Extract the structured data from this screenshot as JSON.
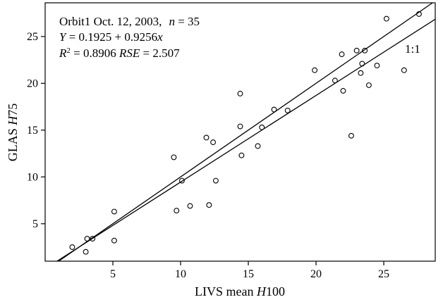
{
  "chart_data": {
    "type": "scatter",
    "annotation": {
      "line1_prefix": "Orbit1 Oct. 12, 2003,",
      "n_symbol": "n",
      "n_eq": " = 35",
      "line2_Y": "Y",
      "line2_mid": " = 0.1925 + 0.9256",
      "line2_x": "x",
      "line3_R": "R",
      "line3_sup": "2",
      "line3_mid": " = 0.8906  ",
      "line3_RSE": "RSE",
      "line3_end": " = 2.507",
      "one_to_one": "1:1"
    },
    "xlabel_prefix": "LIVS mean ",
    "xlabel_var": "H",
    "xlabel_suffix": "100",
    "ylabel_prefix": "GLAS ",
    "ylabel_var": "H",
    "ylabel_suffix": "75",
    "xlim": [
      0.0,
      28.8
    ],
    "ylim": [
      1.0,
      28.6
    ],
    "xticks": [
      5,
      10,
      15,
      20,
      25
    ],
    "yticks": [
      5,
      10,
      15,
      20,
      25
    ],
    "grid": false,
    "regression": {
      "intercept": 0.1925,
      "slope": 0.9256
    },
    "reference_line": {
      "intercept": 0,
      "slope": 1
    },
    "points": [
      [
        2.0,
        2.5
      ],
      [
        3.0,
        2.0
      ],
      [
        3.1,
        3.4
      ],
      [
        3.5,
        3.4
      ],
      [
        5.1,
        3.2
      ],
      [
        5.1,
        6.3
      ],
      [
        9.5,
        12.1
      ],
      [
        9.7,
        6.4
      ],
      [
        10.1,
        9.6
      ],
      [
        10.7,
        6.9
      ],
      [
        11.9,
        14.2
      ],
      [
        12.1,
        7.0
      ],
      [
        12.4,
        13.7
      ],
      [
        12.6,
        9.6
      ],
      [
        14.4,
        18.9
      ],
      [
        14.4,
        15.4
      ],
      [
        14.5,
        12.3
      ],
      [
        15.7,
        13.3
      ],
      [
        16.0,
        15.3
      ],
      [
        16.9,
        17.2
      ],
      [
        17.9,
        17.1
      ],
      [
        19.9,
        21.4
      ],
      [
        21.4,
        20.3
      ],
      [
        21.9,
        23.1
      ],
      [
        22.0,
        19.2
      ],
      [
        22.6,
        14.4
      ],
      [
        23.0,
        23.5
      ],
      [
        23.3,
        21.1
      ],
      [
        23.4,
        22.1
      ],
      [
        23.6,
        23.5
      ],
      [
        23.9,
        19.8
      ],
      [
        24.5,
        21.9
      ],
      [
        25.2,
        26.9
      ],
      [
        26.5,
        21.4
      ],
      [
        27.6,
        27.4
      ]
    ]
  }
}
